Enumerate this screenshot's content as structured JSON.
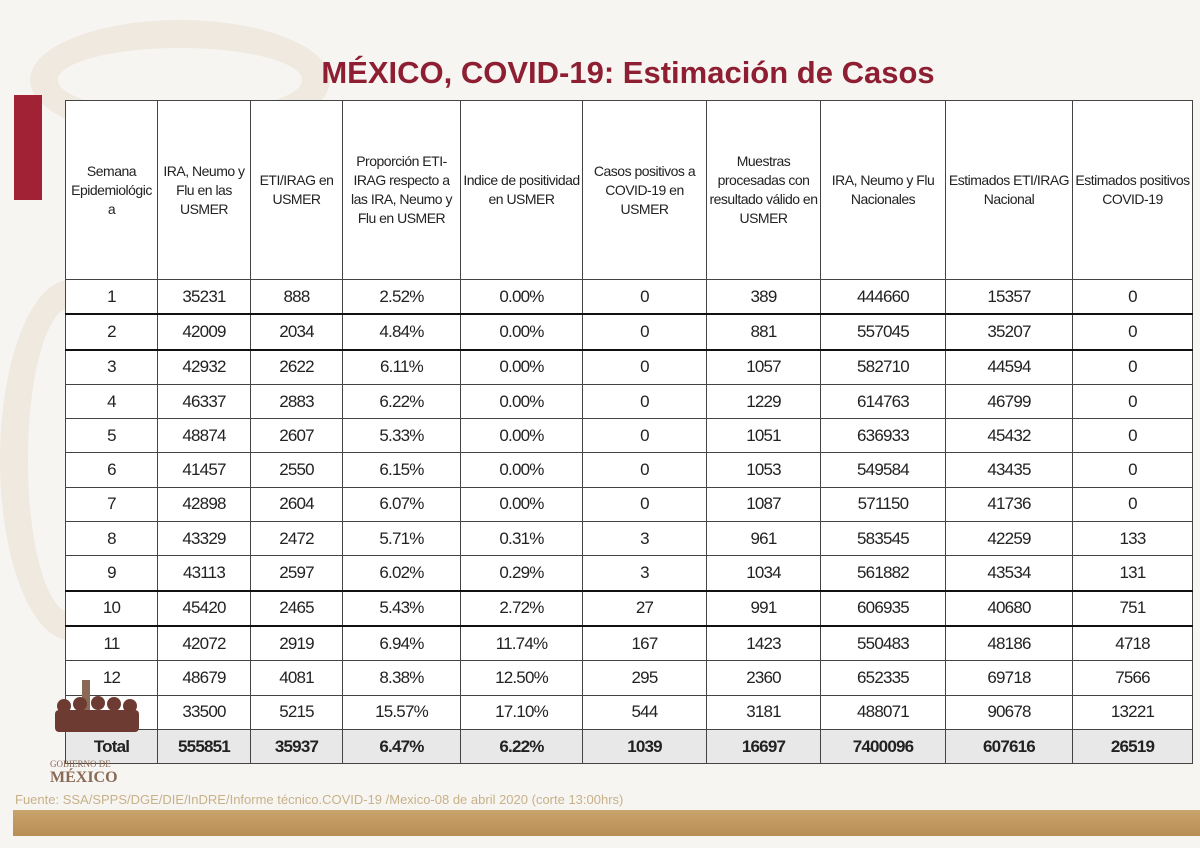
{
  "title": "MÉXICO, COVID-19: Estimación de Casos",
  "table": {
    "headers": [
      "Semana Epidemiológica",
      "IRA, Neumo y Flu en las USMER",
      "ETI/IRAG en USMER",
      "Proporción ETI-IRAG respecto a las IRA, Neumo y Flu en USMER",
      "Indice de positividad en USMER",
      "Casos positivos a COVID-19 en USMER",
      "Muestras procesadas con resultado válido en USMER",
      "IRA, Neumo y Flu Nacionales",
      "Estimados ETI/IRAG Nacional",
      "Estimados positivos COVID-19"
    ],
    "rows": [
      [
        "1",
        "35231",
        "888",
        "2.52%",
        "0.00%",
        "0",
        "389",
        "444660",
        "15357",
        "0"
      ],
      [
        "2",
        "42009",
        "2034",
        "4.84%",
        "0.00%",
        "0",
        "881",
        "557045",
        "35207",
        "0"
      ],
      [
        "3",
        "42932",
        "2622",
        "6.11%",
        "0.00%",
        "0",
        "1057",
        "582710",
        "44594",
        "0"
      ],
      [
        "4",
        "46337",
        "2883",
        "6.22%",
        "0.00%",
        "0",
        "1229",
        "614763",
        "46799",
        "0"
      ],
      [
        "5",
        "48874",
        "2607",
        "5.33%",
        "0.00%",
        "0",
        "1051",
        "636933",
        "45432",
        "0"
      ],
      [
        "6",
        "41457",
        "2550",
        "6.15%",
        "0.00%",
        "0",
        "1053",
        "549584",
        "43435",
        "0"
      ],
      [
        "7",
        "42898",
        "2604",
        "6.07%",
        "0.00%",
        "0",
        "1087",
        "571150",
        "41736",
        "0"
      ],
      [
        "8",
        "43329",
        "2472",
        "5.71%",
        "0.31%",
        "3",
        "961",
        "583545",
        "42259",
        "133"
      ],
      [
        "9",
        "43113",
        "2597",
        "6.02%",
        "0.29%",
        "3",
        "1034",
        "561882",
        "43534",
        "131"
      ],
      [
        "10",
        "45420",
        "2465",
        "5.43%",
        "2.72%",
        "27",
        "991",
        "606935",
        "40680",
        "751"
      ],
      [
        "11",
        "42072",
        "2919",
        "6.94%",
        "11.74%",
        "167",
        "1423",
        "550483",
        "48186",
        "4718"
      ],
      [
        "12",
        "48679",
        "4081",
        "8.38%",
        "12.50%",
        "295",
        "2360",
        "652335",
        "69718",
        "7566"
      ],
      [
        "",
        "33500",
        "5215",
        "15.57%",
        "17.10%",
        "544",
        "3181",
        "488071",
        "90678",
        "13221"
      ]
    ],
    "total": [
      "Total",
      "555851",
      "35937",
      "6.47%",
      "6.22%",
      "1039",
      "16697",
      "7400096",
      "607616",
      "26519"
    ]
  },
  "logo": {
    "line1": "GOBIERNO DE",
    "line2": "MÉXICO"
  },
  "source": "Fuente: SSA/SPPS/DGE/DIE/InDRE/Informe técnico.COVID-19 /Mexico-08 de abril 2020 (corte 13:00hrs)",
  "colors": {
    "title": "#8e1f33",
    "accent_bar": "#a02234",
    "footer_bar": "#c9a46c"
  }
}
